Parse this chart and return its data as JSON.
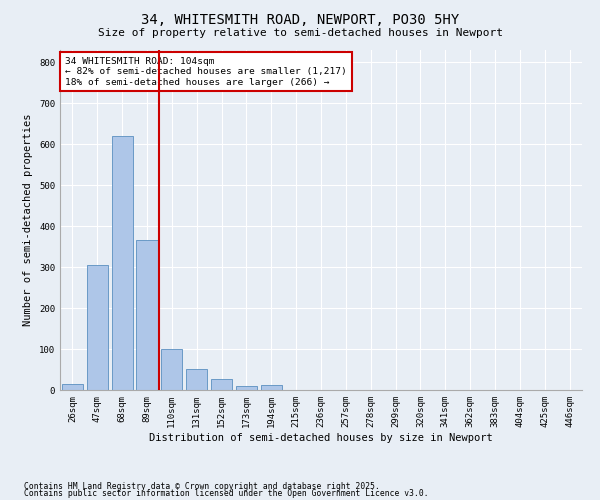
{
  "title1": "34, WHITESMITH ROAD, NEWPORT, PO30 5HY",
  "title2": "Size of property relative to semi-detached houses in Newport",
  "xlabel": "Distribution of semi-detached houses by size in Newport",
  "ylabel": "Number of semi-detached properties",
  "categories": [
    "26sqm",
    "47sqm",
    "68sqm",
    "89sqm",
    "110sqm",
    "131sqm",
    "152sqm",
    "173sqm",
    "194sqm",
    "215sqm",
    "236sqm",
    "257sqm",
    "278sqm",
    "299sqm",
    "320sqm",
    "341sqm",
    "362sqm",
    "383sqm",
    "404sqm",
    "425sqm",
    "446sqm"
  ],
  "values": [
    15,
    305,
    620,
    365,
    100,
    52,
    28,
    10,
    12,
    0,
    0,
    0,
    0,
    0,
    0,
    0,
    0,
    0,
    0,
    0,
    0
  ],
  "bar_color": "#aec6e8",
  "bar_edge_color": "#5a8fc0",
  "vline_position": 3.5,
  "vline_color": "#cc0000",
  "annotation_title": "34 WHITESMITH ROAD: 104sqm",
  "annotation_line1": "← 82% of semi-detached houses are smaller (1,217)",
  "annotation_line2": "18% of semi-detached houses are larger (266) →",
  "annotation_box_color": "#cc0000",
  "ylim": [
    0,
    830
  ],
  "yticks": [
    0,
    100,
    200,
    300,
    400,
    500,
    600,
    700,
    800
  ],
  "footnote1": "Contains HM Land Registry data © Crown copyright and database right 2025.",
  "footnote2": "Contains public sector information licensed under the Open Government Licence v3.0.",
  "bg_color": "#e8eef5",
  "plot_bg_color": "#e8eef5",
  "title1_fontsize": 10,
  "title2_fontsize": 8,
  "axis_label_fontsize": 7.5,
  "tick_fontsize": 6.5,
  "annotation_fontsize": 6.8,
  "footnote_fontsize": 5.8
}
